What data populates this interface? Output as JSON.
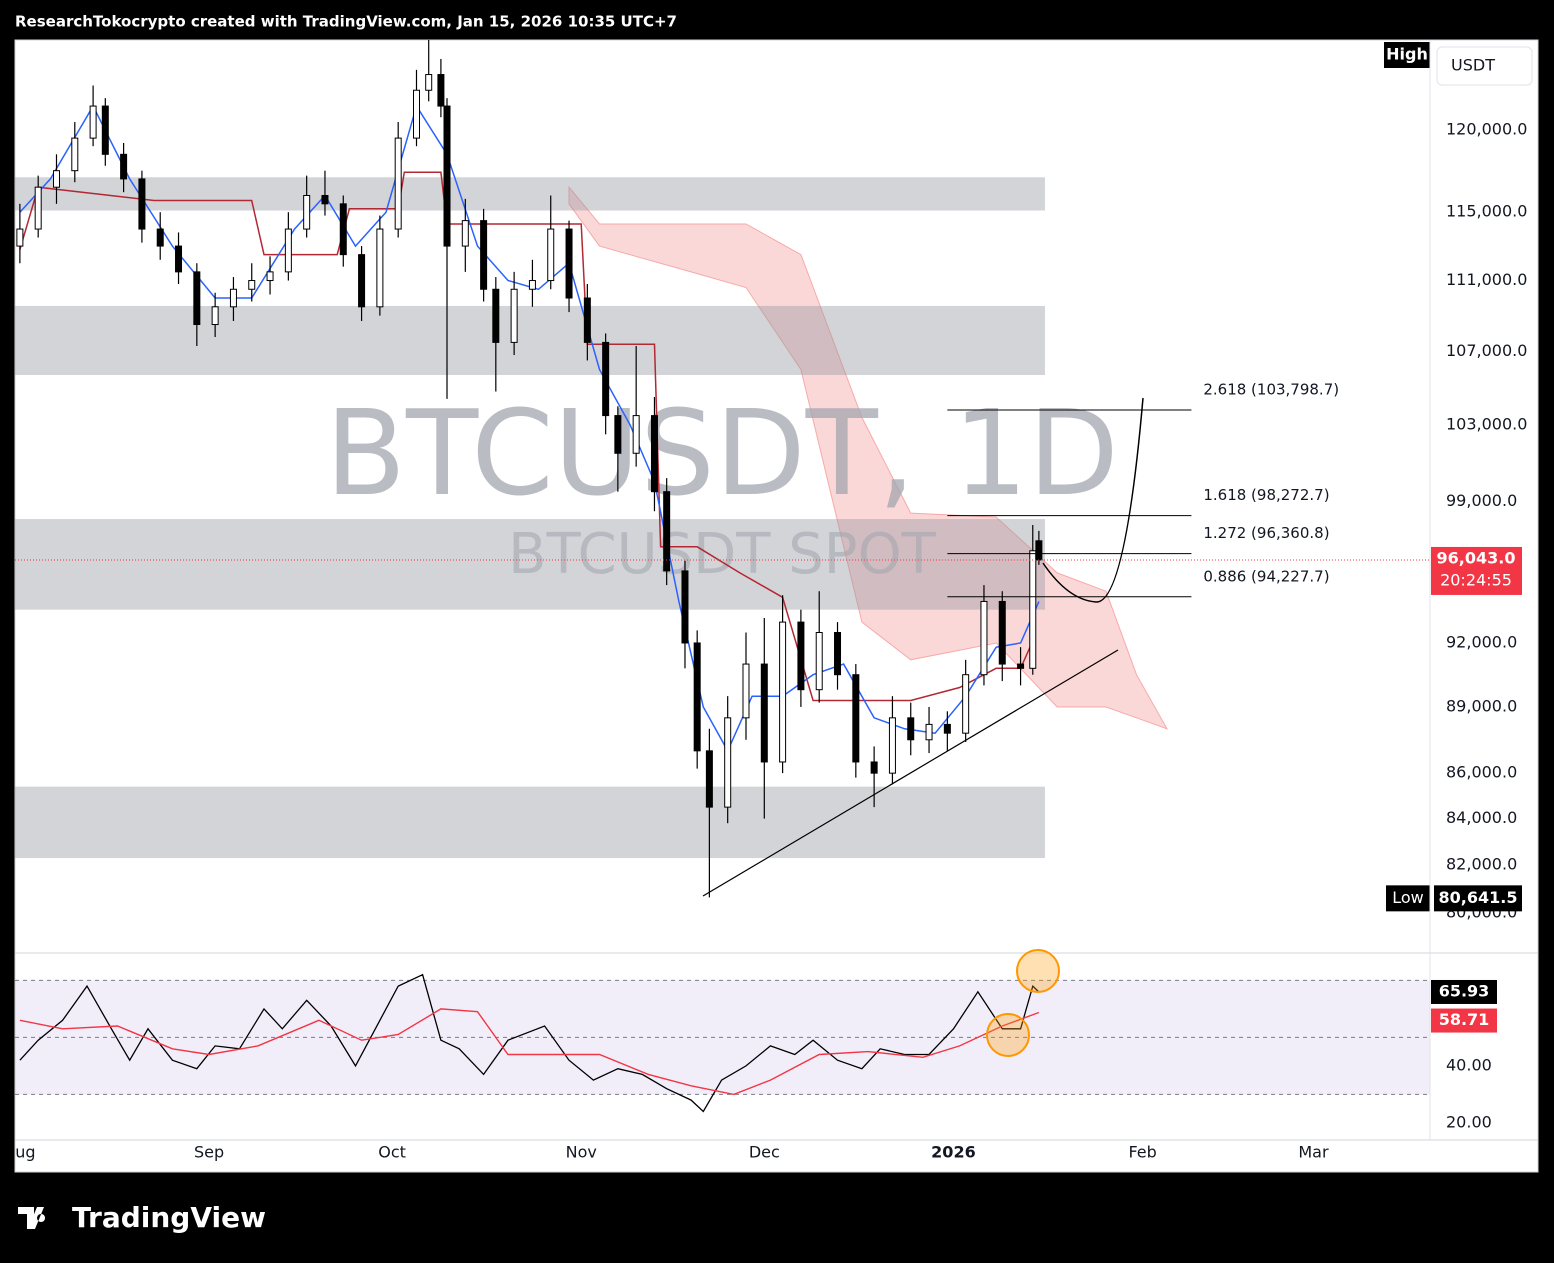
{
  "header": "ResearchTokocrypto created with TradingView.com, Jan 15, 2026 10:35 UTC+7",
  "footer": "TradingView",
  "chart_data": [
    {
      "type": "candlestick",
      "watermark": "BTCUSDT, 1D",
      "watermark_sub": "BTCUSDT SPOT",
      "currency": "USDT",
      "high_label": "High",
      "low_label": "Low",
      "low_value": {
        "value": 80641.5,
        "label": "80,641.5"
      },
      "last_price": {
        "value": 96043,
        "label": "96,043.0"
      },
      "countdown": "20:24:55",
      "log_scale": true,
      "up_color": "#ffffff",
      "down_color": "#000000",
      "xlim": [
        -0.8,
        231.1
      ],
      "xticks": [
        {
          "value": 0,
          "label": "Aug"
        },
        {
          "value": 31,
          "label": "Sep"
        },
        {
          "value": 61,
          "label": "Oct"
        },
        {
          "value": 92,
          "label": "Nov"
        },
        {
          "value": 122,
          "label": "Dec"
        },
        {
          "value": 153,
          "label": "2026"
        },
        {
          "value": 184,
          "label": "Feb"
        },
        {
          "value": 212,
          "label": "Mar"
        }
      ],
      "ylim": [
        78350,
        125730
      ],
      "yticks": [
        {
          "value": 120000,
          "label": "120,000.0"
        },
        {
          "value": 115000,
          "label": "115,000.0"
        },
        {
          "value": 111000,
          "label": "111,000.0"
        },
        {
          "value": 107000,
          "label": "107,000.0"
        },
        {
          "value": 103000,
          "label": "103,000.0"
        },
        {
          "value": 99000,
          "label": "99,000.0"
        },
        {
          "value": 92000,
          "label": "92,000.0"
        },
        {
          "value": 89000,
          "label": "89,000.0"
        },
        {
          "value": 86000,
          "label": "86,000.0"
        },
        {
          "value": 84000,
          "label": "84,000.0"
        },
        {
          "value": 82000,
          "label": "82,000.0"
        },
        {
          "value": 80000,
          "label": "80,000.0"
        }
      ],
      "x": [
        0,
        3,
        6,
        9,
        12,
        14,
        17,
        20,
        23,
        26,
        29,
        32,
        35,
        38,
        41,
        44,
        47,
        50,
        53,
        56,
        59,
        62,
        65,
        67,
        69,
        70,
        73,
        76,
        78,
        81,
        84,
        87,
        90,
        93,
        96,
        98,
        101,
        104,
        106,
        109,
        111,
        113,
        116,
        119,
        122,
        125,
        128,
        131,
        134,
        137,
        140,
        143,
        146,
        149,
        152,
        155,
        158,
        161,
        164,
        166,
        167
      ],
      "open": [
        113000,
        114000,
        116500,
        117500,
        119500,
        121500,
        118500,
        117000,
        114000,
        113000,
        111500,
        108500,
        109500,
        110500,
        111000,
        111500,
        114000,
        116000,
        115500,
        112500,
        109500,
        114000,
        119500,
        122500,
        123500,
        121500,
        113000,
        114500,
        110500,
        107500,
        110500,
        111000,
        114000,
        110000,
        107500,
        103500,
        101500,
        103500,
        99500,
        95500,
        92000,
        87000,
        84500,
        88500,
        91000,
        86500,
        93000,
        89800,
        92500,
        90500,
        86500,
        86000,
        88500,
        87500,
        88200,
        87800,
        90500,
        94000,
        91000,
        90800,
        97000
      ],
      "high": [
        115500,
        117200,
        118500,
        120500,
        122800,
        122000,
        119200,
        117500,
        115000,
        113800,
        112000,
        110300,
        111200,
        112000,
        112400,
        115000,
        117200,
        117500,
        116000,
        113000,
        114800,
        120500,
        123800,
        126200,
        124500,
        122000,
        115800,
        115200,
        111200,
        111500,
        112200,
        116000,
        114500,
        110800,
        108000,
        104000,
        107300,
        104500,
        100200,
        96000,
        92600,
        88000,
        89500,
        92500,
        93200,
        94300,
        93600,
        94500,
        93000,
        91000,
        87200,
        89500,
        89200,
        89000,
        88800,
        91200,
        94800,
        94500,
        91800,
        97800,
        97500
      ],
      "low": [
        112000,
        113500,
        115500,
        116800,
        119000,
        117800,
        116200,
        113200,
        112200,
        110800,
        107300,
        107800,
        108700,
        109800,
        110200,
        111000,
        113500,
        114800,
        111800,
        108700,
        109000,
        113500,
        119000,
        121800,
        120800,
        104400,
        111500,
        109800,
        104800,
        106800,
        109500,
        110500,
        109200,
        106500,
        102500,
        99500,
        100800,
        98500,
        94800,
        90800,
        86200,
        80641.5,
        83800,
        87500,
        84000,
        86000,
        89000,
        89200,
        89800,
        85800,
        84500,
        85500,
        86800,
        86900,
        87000,
        87400,
        90000,
        90200,
        90000,
        90500,
        95800
      ],
      "close": [
        114000,
        116500,
        117500,
        119500,
        121500,
        118500,
        117000,
        114000,
        113000,
        111500,
        108500,
        109500,
        110500,
        111000,
        111500,
        114000,
        116000,
        115500,
        112500,
        109500,
        114000,
        119500,
        122500,
        123500,
        121500,
        113000,
        114500,
        110500,
        107500,
        110500,
        111000,
        114000,
        110000,
        107500,
        103500,
        101500,
        103500,
        99500,
        95500,
        92000,
        87000,
        84500,
        88500,
        91000,
        86500,
        93000,
        89800,
        92500,
        90500,
        86500,
        86000,
        88500,
        87500,
        88200,
        87800,
        90500,
        94000,
        91000,
        90800,
        96500,
        96043
      ],
      "zones": [
        {
          "x": [
            -0.8,
            168
          ],
          "y": [
            115100,
            117100
          ]
        },
        {
          "x": [
            -0.8,
            168
          ],
          "y": [
            105700,
            109550
          ]
        },
        {
          "x": [
            -0.8,
            168
          ],
          "y": [
            93600,
            98100
          ]
        },
        {
          "x": [
            -0.8,
            168
          ],
          "y": [
            82300,
            85400
          ]
        }
      ],
      "fib": {
        "x": [
          152,
          192
        ],
        "levels": [
          {
            "value": 103798.7,
            "label": "2.618 (103,798.7)"
          },
          {
            "value": 98272.7,
            "label": "1.618 (98,272.7)"
          },
          {
            "value": 96360.8,
            "label": "1.272 (96,360.8)"
          },
          {
            "value": 94227.7,
            "label": "0.886 (94,227.7)"
          }
        ]
      },
      "kijun": {
        "color": "#b22833",
        "x": [
          0,
          3,
          22,
          38,
          40,
          52,
          54,
          62,
          63,
          69,
          70,
          92,
          93,
          104,
          105,
          111,
          118,
          125,
          130,
          146,
          154,
          160,
          164,
          166
        ],
        "values": [
          112800,
          116500,
          115700,
          115700,
          112500,
          112500,
          115200,
          115200,
          117400,
          117400,
          114300,
          114300,
          107400,
          107400,
          96700,
          96700,
          95400,
          94200,
          89300,
          89300,
          89900,
          90800,
          90800,
          92100
        ]
      },
      "tenkan": {
        "color": "#2962ff",
        "x": [
          0,
          5,
          12,
          18,
          25,
          32,
          38,
          45,
          50,
          55,
          60,
          65,
          70,
          75,
          80,
          85,
          90,
          95,
          100,
          104,
          108,
          112,
          116,
          120,
          125,
          130,
          135,
          140,
          145,
          150,
          155,
          160,
          164,
          167
        ],
        "values": [
          115000,
          117000,
          121500,
          117000,
          113000,
          110000,
          110000,
          114000,
          116000,
          113000,
          115000,
          121500,
          118500,
          113000,
          111000,
          110500,
          112000,
          106000,
          103000,
          100000,
          94000,
          89000,
          87000,
          89500,
          89500,
          90500,
          91000,
          88500,
          88000,
          87800,
          89500,
          91800,
          92000,
          94000
        ]
      },
      "cloud": {
        "color": "#f7a9a8",
        "x": [
          90,
          95,
          110,
          119,
          128,
          138,
          146,
          160,
          170,
          178,
          183,
          188
        ],
        "upper": [
          116500,
          114300,
          114300,
          114300,
          112500,
          103400,
          98400,
          98200,
          95400,
          94500,
          90500,
          88000
        ],
        "lower": [
          115500,
          113000,
          111500,
          110600,
          106000,
          93000,
          91200,
          92000,
          89000,
          89000,
          88500,
          88000
        ]
      }
    },
    {
      "type": "line",
      "xlim": [
        -0.8,
        231.1
      ],
      "ylim": [
        14,
        79.6
      ],
      "yticks": [
        {
          "value": 40,
          "label": "40.00"
        },
        {
          "value": 20,
          "label": "20.00"
        }
      ],
      "band": [
        30,
        70
      ],
      "midline": 50,
      "series": [
        {
          "color": "#000000",
          "x": [
            0,
            3,
            7,
            11,
            15,
            18,
            21,
            25,
            29,
            32,
            36,
            40,
            43,
            47,
            51,
            55,
            59,
            62,
            66,
            69,
            72,
            76,
            80,
            86,
            90,
            94,
            98,
            102,
            106,
            110,
            112,
            115,
            119,
            123,
            127,
            130,
            134,
            138,
            141,
            145,
            149,
            153,
            157,
            161,
            164,
            166,
            167
          ],
          "values": [
            42,
            49,
            56,
            68,
            53,
            42,
            53,
            42,
            39,
            47,
            46,
            60,
            53,
            63,
            54,
            40,
            56,
            68,
            72,
            49,
            46,
            37,
            49,
            54,
            42,
            35,
            39,
            37,
            32,
            28,
            24,
            35,
            40,
            47,
            44,
            49,
            42,
            39,
            46,
            44,
            44,
            53,
            66,
            53,
            53,
            68,
            65.93
          ]
        },
        {
          "color": "#f23645",
          "x": [
            0,
            7,
            16,
            25,
            31,
            39,
            49,
            56,
            62,
            69,
            75,
            80,
            89,
            95,
            103,
            110,
            117,
            123,
            131,
            139,
            148,
            154,
            161,
            167
          ],
          "values": [
            56,
            53,
            54,
            46,
            44,
            47,
            56,
            49,
            51,
            60,
            59,
            44,
            44,
            44,
            37,
            33,
            30,
            35,
            44,
            45,
            43,
            47,
            54,
            58.71
          ]
        }
      ]
    }
  ]
}
